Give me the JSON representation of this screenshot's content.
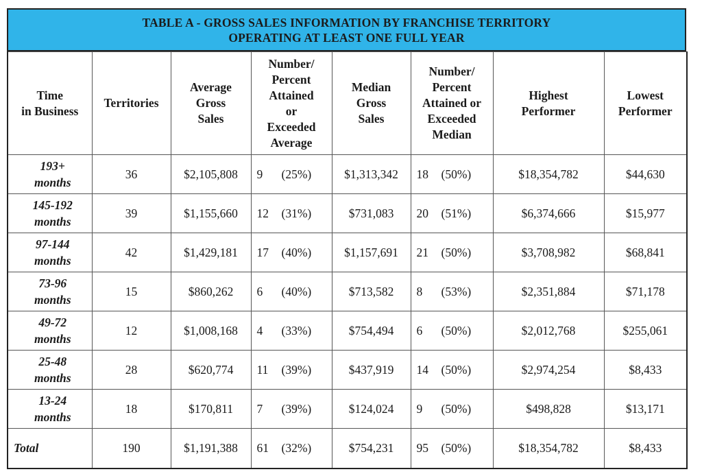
{
  "title": {
    "line1": "TABLE A - GROSS SALES INFORMATION BY FRANCHISE TERRITORY",
    "line2": "OPERATING AT LEAST ONE FULL YEAR"
  },
  "headers": {
    "time": [
      "Time",
      "in Business"
    ],
    "territories": [
      "Territories"
    ],
    "avg_sales": [
      "Average",
      "Gross",
      "Sales"
    ],
    "np_avg": [
      "Number/",
      "Percent",
      "Attained",
      "or",
      "Exceeded",
      "Average"
    ],
    "median_sales": [
      "Median",
      "Gross",
      "Sales"
    ],
    "np_median": [
      "Number/",
      "Percent",
      "Attained or",
      "Exceeded",
      "Median"
    ],
    "highest": [
      "Highest",
      "Performer"
    ],
    "lowest": [
      "Lowest",
      "Performer"
    ]
  },
  "rows": [
    {
      "time": [
        "193+",
        "months"
      ],
      "territories": "36",
      "avg_sales": "$2,105,808",
      "np_avg_num": "9",
      "np_avg_pct": "(25%)",
      "median_sales": "$1,313,342",
      "np_med_num": "18",
      "np_med_pct": "(50%)",
      "highest": "$18,354,782",
      "lowest": "$44,630"
    },
    {
      "time": [
        "145-192",
        "months"
      ],
      "territories": "39",
      "avg_sales": "$1,155,660",
      "np_avg_num": "12",
      "np_avg_pct": "(31%)",
      "median_sales": "$731,083",
      "np_med_num": "20",
      "np_med_pct": "(51%)",
      "highest": "$6,374,666",
      "lowest": "$15,977"
    },
    {
      "time": [
        "97-144",
        "months"
      ],
      "territories": "42",
      "avg_sales": "$1,429,181",
      "np_avg_num": "17",
      "np_avg_pct": "(40%)",
      "median_sales": "$1,157,691",
      "np_med_num": "21",
      "np_med_pct": "(50%)",
      "highest": "$3,708,982",
      "lowest": "$68,841"
    },
    {
      "time": [
        "73-96",
        "months"
      ],
      "territories": "15",
      "avg_sales": "$860,262",
      "np_avg_num": "6",
      "np_avg_pct": "(40%)",
      "median_sales": "$713,582",
      "np_med_num": "8",
      "np_med_pct": "(53%)",
      "highest": "$2,351,884",
      "lowest": "$71,178"
    },
    {
      "time": [
        "49-72",
        "months"
      ],
      "territories": "12",
      "avg_sales": "$1,008,168",
      "np_avg_num": "4",
      "np_avg_pct": "(33%)",
      "median_sales": "$754,494",
      "np_med_num": "6",
      "np_med_pct": "(50%)",
      "highest": "$2,012,768",
      "lowest": "$255,061"
    },
    {
      "time": [
        "25-48",
        "months"
      ],
      "territories": "28",
      "avg_sales": "$620,774",
      "np_avg_num": "11",
      "np_avg_pct": "(39%)",
      "median_sales": "$437,919",
      "np_med_num": "14",
      "np_med_pct": "(50%)",
      "highest": "$2,974,254",
      "lowest": "$8,433"
    },
    {
      "time": [
        "13-24",
        "months"
      ],
      "territories": "18",
      "avg_sales": "$170,811",
      "np_avg_num": "7",
      "np_avg_pct": "(39%)",
      "median_sales": "$124,024",
      "np_med_num": "9",
      "np_med_pct": "(50%)",
      "highest": "$498,828",
      "lowest": "$13,171"
    }
  ],
  "total": {
    "label": "Total",
    "territories": "190",
    "avg_sales": "$1,191,388",
    "np_avg_num": "61",
    "np_avg_pct": "(32%)",
    "median_sales": "$754,231",
    "np_med_num": "95",
    "np_med_pct": "(50%)",
    "highest": "$18,354,782",
    "lowest": "$8,433"
  },
  "colors": {
    "title_background": "#30b4e9",
    "border": "#222222"
  }
}
